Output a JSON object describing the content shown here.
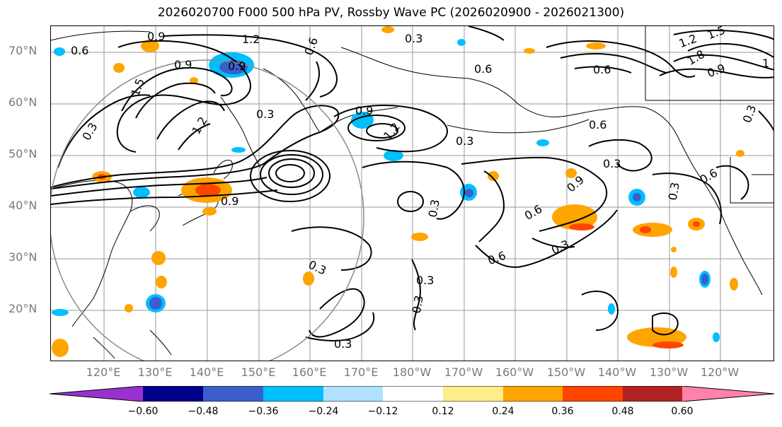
{
  "title": "2026020700 F000 500 hPa PV, Rossby Wave PC (2026020900 - 2026021300)",
  "lat_labels": [
    "70°N",
    "60°N",
    "50°N",
    "40°N",
    "30°N",
    "20°N"
  ],
  "lon_labels": [
    "120°E",
    "130°E",
    "140°E",
    "150°E",
    "160°E",
    "170°E",
    "180°W",
    "170°W",
    "160°W",
    "150°W",
    "140°W",
    "130°W",
    "120°W"
  ],
  "contour_labels": [
    "0.9",
    "1.2",
    "0.6",
    "0.9",
    "0.9",
    "1.5",
    "1.2",
    "0.6",
    "0.3",
    "0.9",
    "1.2",
    "0.3",
    "0.9",
    "0.3",
    "0.3",
    "0.6",
    "0.3",
    "0.6",
    "0.9",
    "0.3",
    "0.6",
    "0.3",
    "0.6",
    "0.3",
    "0.3",
    "0.3",
    "0.3",
    "1.2",
    "1.5",
    "1.8",
    "0.6",
    "0.9",
    "1",
    "0.3",
    "0.6",
    "0.3"
  ],
  "colorbar": {
    "colors": [
      "#9b30d0",
      "#00008b",
      "#3a5fcd",
      "#00bfff",
      "#b0e2ff",
      "#ffffff",
      "#ffec8b",
      "#ffa500",
      "#ff4500",
      "#b22222",
      "#ff82ab"
    ],
    "tick_labels": [
      "−0.60",
      "−0.48",
      "−0.36",
      "−0.24",
      "−0.12",
      "0.12",
      "0.24",
      "0.36",
      "0.48",
      "0.60"
    ],
    "ticks": [
      -0.6,
      -0.48,
      -0.36,
      -0.24,
      -0.12,
      0.12,
      0.24,
      0.36,
      0.48,
      0.6
    ]
  }
}
